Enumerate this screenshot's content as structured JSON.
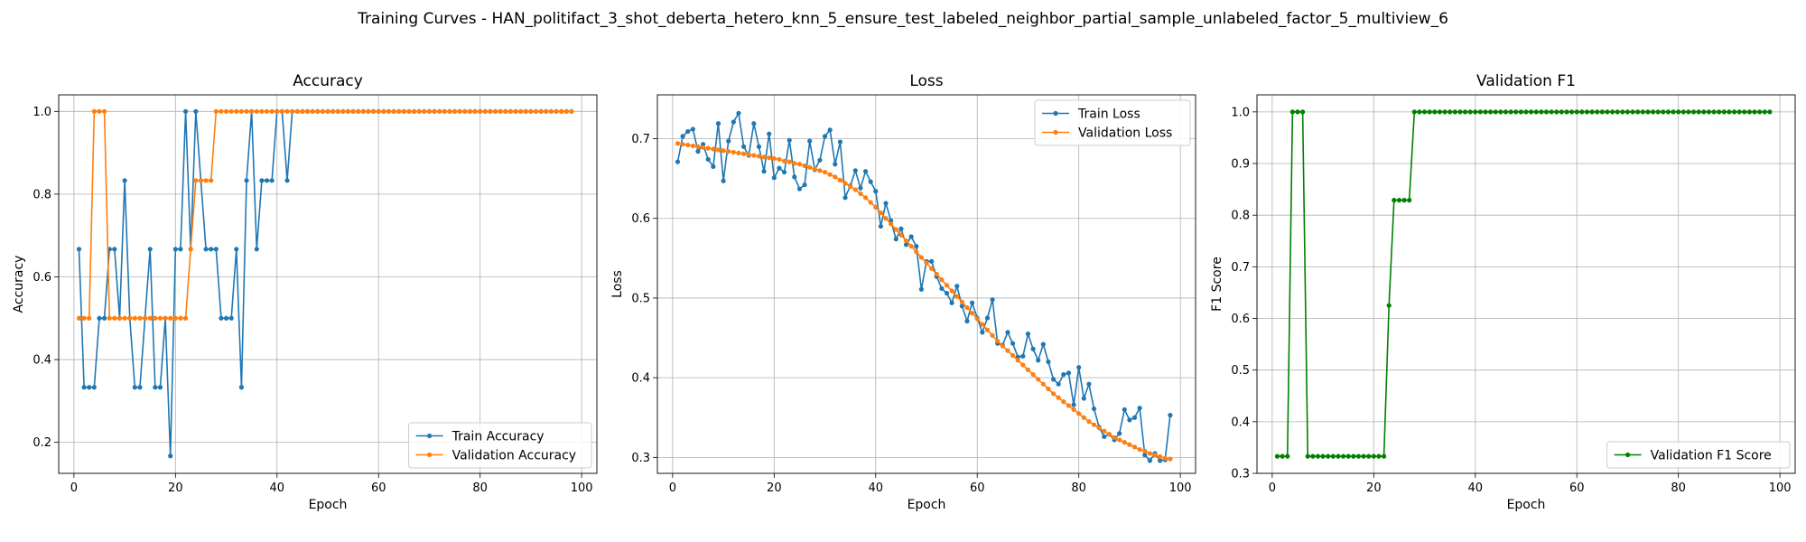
{
  "figure": {
    "suptitle": "Training Curves - HAN_politifact_3_shot_deberta_hetero_knn_5_ensure_test_labeled_neighbor_partial_sample_unlabeled_factor_5_multiview_6"
  },
  "colors": {
    "blue": "#1f77b4",
    "orange": "#ff7f0e",
    "green": "#008000",
    "grid": "#b0b0b0"
  },
  "chart_data": [
    {
      "type": "line",
      "title": "Accuracy",
      "xlabel": "Epoch",
      "ylabel": "Accuracy",
      "xlim": [
        -3,
        103
      ],
      "ylim": [
        0.125,
        1.04
      ],
      "xticks": [
        0,
        20,
        40,
        60,
        80,
        100
      ],
      "yticks": [
        0.2,
        0.4,
        0.6,
        0.8,
        1.0
      ],
      "ytick_labels": [
        "0.2",
        "0.4",
        "0.6",
        "0.8",
        "1.0"
      ],
      "grid": true,
      "legend": "lower right",
      "series": [
        {
          "name": "Train Accuracy",
          "color": "#1f77b4",
          "x_start": 1,
          "values": [
            0.667,
            0.333,
            0.333,
            0.333,
            0.5,
            0.5,
            0.667,
            0.667,
            0.5,
            0.833,
            0.5,
            0.333,
            0.333,
            0.5,
            0.667,
            0.333,
            0.333,
            0.5,
            0.167,
            0.667,
            0.667,
            1.0,
            0.667,
            1.0,
            0.833,
            0.667,
            0.667,
            0.667,
            0.5,
            0.5,
            0.5,
            0.667,
            0.333,
            0.833,
            1.0,
            0.667,
            0.833,
            0.833,
            0.833,
            1.0,
            1.0,
            0.833,
            1.0,
            1.0,
            1.0,
            1.0,
            1.0,
            1.0,
            1.0,
            1.0,
            1.0,
            1.0,
            1.0,
            1.0,
            1.0,
            1.0,
            1.0,
            1.0,
            1.0,
            1.0,
            1.0,
            1.0,
            1.0,
            1.0,
            1.0,
            1.0,
            1.0,
            1.0,
            1.0,
            1.0,
            1.0,
            1.0,
            1.0,
            1.0,
            1.0,
            1.0,
            1.0,
            1.0,
            1.0,
            1.0,
            1.0,
            1.0,
            1.0,
            1.0,
            1.0,
            1.0,
            1.0,
            1.0,
            1.0,
            1.0,
            1.0,
            1.0,
            1.0,
            1.0,
            1.0,
            1.0,
            1.0,
            1.0
          ]
        },
        {
          "name": "Validation Accuracy",
          "color": "#ff7f0e",
          "x_start": 1,
          "values": [
            0.5,
            0.5,
            0.5,
            1.0,
            1.0,
            1.0,
            0.5,
            0.5,
            0.5,
            0.5,
            0.5,
            0.5,
            0.5,
            0.5,
            0.5,
            0.5,
            0.5,
            0.5,
            0.5,
            0.5,
            0.5,
            0.5,
            0.667,
            0.833,
            0.833,
            0.833,
            0.833,
            1.0,
            1.0,
            1.0,
            1.0,
            1.0,
            1.0,
            1.0,
            1.0,
            1.0,
            1.0,
            1.0,
            1.0,
            1.0,
            1.0,
            1.0,
            1.0,
            1.0,
            1.0,
            1.0,
            1.0,
            1.0,
            1.0,
            1.0,
            1.0,
            1.0,
            1.0,
            1.0,
            1.0,
            1.0,
            1.0,
            1.0,
            1.0,
            1.0,
            1.0,
            1.0,
            1.0,
            1.0,
            1.0,
            1.0,
            1.0,
            1.0,
            1.0,
            1.0,
            1.0,
            1.0,
            1.0,
            1.0,
            1.0,
            1.0,
            1.0,
            1.0,
            1.0,
            1.0,
            1.0,
            1.0,
            1.0,
            1.0,
            1.0,
            1.0,
            1.0,
            1.0,
            1.0,
            1.0,
            1.0,
            1.0,
            1.0,
            1.0,
            1.0,
            1.0,
            1.0,
            1.0
          ]
        }
      ]
    },
    {
      "type": "line",
      "title": "Loss",
      "xlabel": "Epoch",
      "ylabel": "Loss",
      "xlim": [
        -3,
        103
      ],
      "ylim": [
        0.28,
        0.755
      ],
      "xticks": [
        0,
        20,
        40,
        60,
        80,
        100
      ],
      "yticks": [
        0.3,
        0.4,
        0.5,
        0.6,
        0.7
      ],
      "ytick_labels": [
        "0.3",
        "0.4",
        "0.5",
        "0.6",
        "0.7"
      ],
      "grid": true,
      "legend": "upper right",
      "series": [
        {
          "name": "Train Loss",
          "color": "#1f77b4",
          "x_start": 1,
          "values": [
            0.671,
            0.703,
            0.709,
            0.712,
            0.684,
            0.693,
            0.674,
            0.665,
            0.719,
            0.647,
            0.697,
            0.721,
            0.732,
            0.69,
            0.679,
            0.719,
            0.69,
            0.659,
            0.706,
            0.651,
            0.663,
            0.658,
            0.698,
            0.652,
            0.637,
            0.642,
            0.697,
            0.661,
            0.673,
            0.703,
            0.711,
            0.668,
            0.696,
            0.626,
            0.641,
            0.66,
            0.638,
            0.659,
            0.646,
            0.634,
            0.59,
            0.619,
            0.597,
            0.574,
            0.587,
            0.567,
            0.577,
            0.565,
            0.511,
            0.546,
            0.546,
            0.527,
            0.512,
            0.506,
            0.494,
            0.515,
            0.49,
            0.471,
            0.494,
            0.475,
            0.457,
            0.475,
            0.498,
            0.443,
            0.441,
            0.457,
            0.443,
            0.426,
            0.427,
            0.455,
            0.436,
            0.422,
            0.442,
            0.42,
            0.398,
            0.392,
            0.404,
            0.406,
            0.366,
            0.413,
            0.374,
            0.392,
            0.361,
            0.338,
            0.326,
            0.329,
            0.322,
            0.33,
            0.36,
            0.347,
            0.35,
            0.362,
            0.303,
            0.296,
            0.305,
            0.296,
            0.297,
            0.353
          ]
        },
        {
          "name": "Validation Loss",
          "color": "#ff7f0e",
          "x_start": 1,
          "values": [
            0.694,
            0.693,
            0.692,
            0.691,
            0.69,
            0.689,
            0.688,
            0.687,
            0.686,
            0.685,
            0.684,
            0.683,
            0.682,
            0.681,
            0.68,
            0.679,
            0.678,
            0.677,
            0.676,
            0.675,
            0.674,
            0.672,
            0.671,
            0.669,
            0.668,
            0.666,
            0.664,
            0.662,
            0.66,
            0.658,
            0.655,
            0.652,
            0.648,
            0.644,
            0.64,
            0.636,
            0.631,
            0.626,
            0.62,
            0.614,
            0.607,
            0.6,
            0.593,
            0.586,
            0.579,
            0.572,
            0.565,
            0.558,
            0.551,
            0.544,
            0.537,
            0.53,
            0.523,
            0.516,
            0.509,
            0.502,
            0.495,
            0.488,
            0.481,
            0.474,
            0.467,
            0.46,
            0.453,
            0.446,
            0.44,
            0.434,
            0.428,
            0.422,
            0.416,
            0.41,
            0.404,
            0.398,
            0.392,
            0.386,
            0.38,
            0.375,
            0.37,
            0.365,
            0.36,
            0.355,
            0.35,
            0.345,
            0.341,
            0.337,
            0.333,
            0.329,
            0.325,
            0.322,
            0.319,
            0.316,
            0.313,
            0.31,
            0.308,
            0.305,
            0.303,
            0.301,
            0.299,
            0.298
          ]
        }
      ]
    },
    {
      "type": "line",
      "title": "Validation F1",
      "xlabel": "Epoch",
      "ylabel": "F1 Score",
      "xlim": [
        -3,
        103
      ],
      "ylim": [
        0.3,
        1.033
      ],
      "xticks": [
        0,
        20,
        40,
        60,
        80,
        100
      ],
      "yticks": [
        0.3,
        0.4,
        0.5,
        0.6,
        0.7,
        0.8,
        0.9,
        1.0
      ],
      "ytick_labels": [
        "0.3",
        "0.4",
        "0.5",
        "0.6",
        "0.7",
        "0.8",
        "0.9",
        "1.0"
      ],
      "grid": true,
      "legend": "lower right",
      "series": [
        {
          "name": "Validation F1 Score",
          "color": "#008000",
          "x_start": 1,
          "values": [
            0.333,
            0.333,
            0.333,
            1.0,
            1.0,
            1.0,
            0.333,
            0.333,
            0.333,
            0.333,
            0.333,
            0.333,
            0.333,
            0.333,
            0.333,
            0.333,
            0.333,
            0.333,
            0.333,
            0.333,
            0.333,
            0.333,
            0.625,
            0.829,
            0.829,
            0.829,
            0.829,
            1.0,
            1.0,
            1.0,
            1.0,
            1.0,
            1.0,
            1.0,
            1.0,
            1.0,
            1.0,
            1.0,
            1.0,
            1.0,
            1.0,
            1.0,
            1.0,
            1.0,
            1.0,
            1.0,
            1.0,
            1.0,
            1.0,
            1.0,
            1.0,
            1.0,
            1.0,
            1.0,
            1.0,
            1.0,
            1.0,
            1.0,
            1.0,
            1.0,
            1.0,
            1.0,
            1.0,
            1.0,
            1.0,
            1.0,
            1.0,
            1.0,
            1.0,
            1.0,
            1.0,
            1.0,
            1.0,
            1.0,
            1.0,
            1.0,
            1.0,
            1.0,
            1.0,
            1.0,
            1.0,
            1.0,
            1.0,
            1.0,
            1.0,
            1.0,
            1.0,
            1.0,
            1.0,
            1.0,
            1.0,
            1.0,
            1.0,
            1.0,
            1.0,
            1.0,
            1.0,
            1.0
          ]
        }
      ]
    }
  ]
}
